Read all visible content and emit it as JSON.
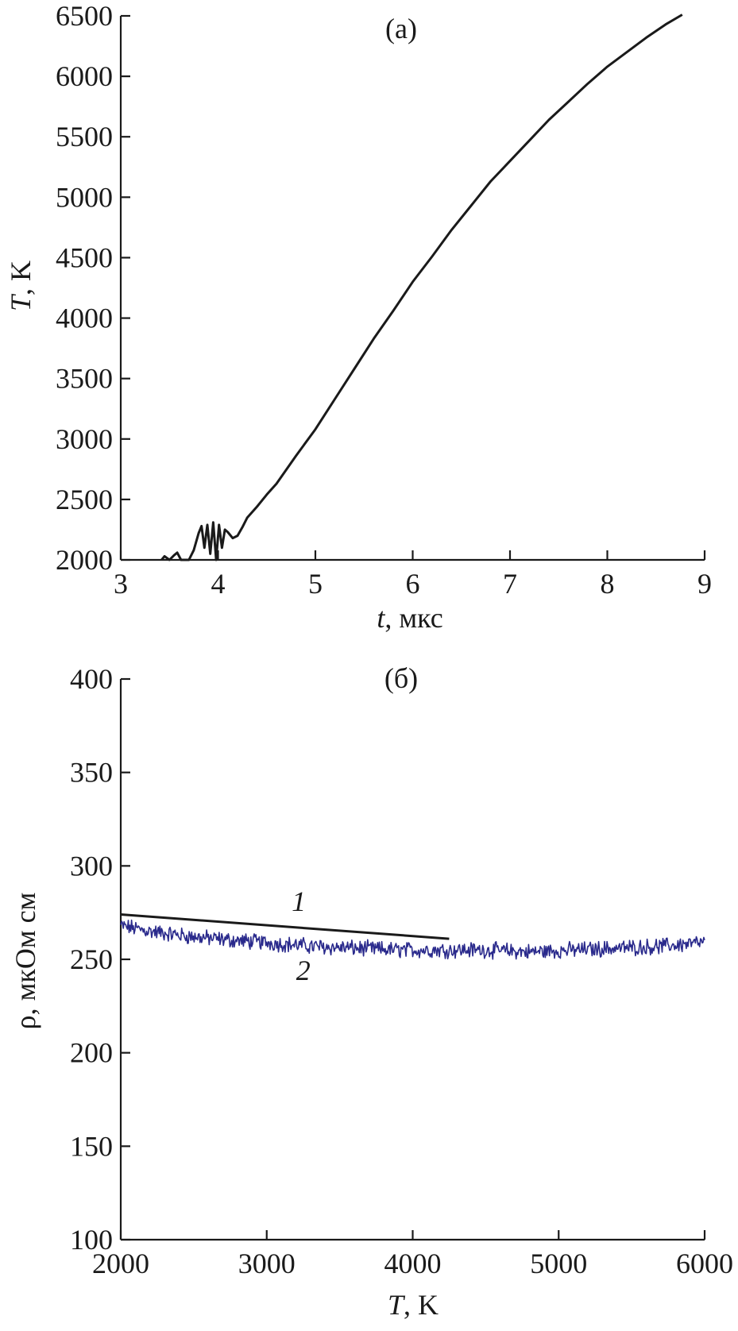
{
  "chart_data": [
    {
      "type": "line",
      "panel_label": "(a)",
      "xlabel": {
        "symbol": "t",
        "unit": ", мкс"
      },
      "ylabel": {
        "symbol": "T",
        "unit": ", K"
      },
      "xlim": [
        3,
        9
      ],
      "ylim": [
        2000,
        6500
      ],
      "xticks": [
        3,
        4,
        5,
        6,
        7,
        8,
        9
      ],
      "yticks": [
        2000,
        2500,
        3000,
        3500,
        4000,
        4500,
        5000,
        5500,
        6000,
        6500
      ],
      "grid": false,
      "series": [
        {
          "color": "#1a1a1a",
          "x": [
            3.42,
            3.45,
            3.5,
            3.55,
            3.58,
            3.62,
            3.7,
            3.75,
            3.8,
            3.83,
            3.86,
            3.89,
            3.92,
            3.95,
            3.98,
            4.01,
            4.04,
            4.07,
            4.1,
            4.15,
            4.2,
            4.25,
            4.3,
            4.4,
            4.5,
            4.6,
            4.8,
            5.0,
            5.2,
            5.4,
            5.6,
            5.8,
            6.0,
            6.2,
            6.4,
            6.6,
            6.8,
            7.0,
            7.2,
            7.4,
            7.6,
            7.8,
            8.0,
            8.2,
            8.4,
            8.6,
            8.77
          ],
          "y": [
            2000,
            2030,
            2000,
            2040,
            2060,
            2000,
            2000,
            2080,
            2220,
            2280,
            2100,
            2290,
            2050,
            2310,
            2000,
            2290,
            2100,
            2250,
            2230,
            2180,
            2200,
            2270,
            2350,
            2440,
            2540,
            2630,
            2860,
            3080,
            3330,
            3580,
            3830,
            4060,
            4300,
            4510,
            4730,
            4930,
            5130,
            5300,
            5470,
            5640,
            5790,
            5940,
            6080,
            6200,
            6320,
            6430,
            6510
          ]
        }
      ]
    },
    {
      "type": "line",
      "panel_label": "(б)",
      "xlabel": {
        "symbol": "T",
        "unit": ", K"
      },
      "ylabel": {
        "symbol": "",
        "unit": "ρ, мкОм см"
      },
      "xlim": [
        2000,
        6000
      ],
      "ylim": [
        100,
        400
      ],
      "xticks": [
        2000,
        3000,
        4000,
        5000,
        6000
      ],
      "yticks": [
        100,
        150,
        200,
        250,
        300,
        350,
        400
      ],
      "grid": false,
      "series": [
        {
          "label": "1",
          "color": "#1a1a1a",
          "x": [
            2000,
            4250
          ],
          "y": [
            274,
            261
          ]
        },
        {
          "label": "2",
          "color": "#2a2a8c",
          "noisy": true,
          "x": [
            2000,
            2200,
            2500,
            2800,
            3000,
            3300,
            3600,
            3900,
            4200,
            4500,
            4800,
            5100,
            5400,
            5700,
            6000
          ],
          "y": [
            268,
            265,
            262,
            260,
            259,
            257,
            256,
            255,
            255,
            255,
            254,
            255,
            256,
            257,
            259
          ]
        }
      ]
    }
  ]
}
